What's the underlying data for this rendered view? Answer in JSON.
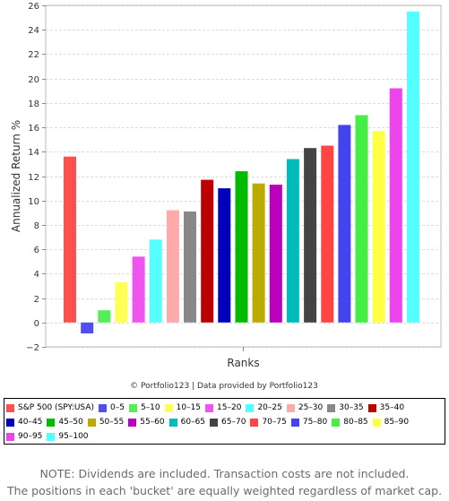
{
  "chart_data": {
    "type": "bar",
    "title": "",
    "xlabel": "Ranks",
    "ylabel": "Annualized Return %",
    "ylim": [
      -2,
      26
    ],
    "yticks": [
      -2,
      0,
      2,
      4,
      6,
      8,
      10,
      12,
      14,
      16,
      18,
      20,
      22,
      24,
      26
    ],
    "grid": true,
    "legend_position": "bottom",
    "series": [
      {
        "name": "S&P 500 (SPY:USA)",
        "value": 13.6,
        "color": "#ff5050"
      },
      {
        "name": "0-5",
        "value": -0.9,
        "color": "#4f4fef"
      },
      {
        "name": "5-10",
        "value": 1.0,
        "color": "#55ee55"
      },
      {
        "name": "10-15",
        "value": 3.3,
        "color": "#ffff55"
      },
      {
        "name": "15-20",
        "value": 5.4,
        "color": "#ee55ee"
      },
      {
        "name": "20-25",
        "value": 6.8,
        "color": "#55ffff"
      },
      {
        "name": "25-30",
        "value": 9.2,
        "color": "#ffaaaa"
      },
      {
        "name": "30-35",
        "value": 9.1,
        "color": "#888888"
      },
      {
        "name": "35-40",
        "value": 11.7,
        "color": "#bb0000"
      },
      {
        "name": "40-45",
        "value": 11.0,
        "color": "#0000bb"
      },
      {
        "name": "45-50",
        "value": 12.4,
        "color": "#00bb00"
      },
      {
        "name": "50-55",
        "value": 11.4,
        "color": "#bbaa00"
      },
      {
        "name": "55-60",
        "value": 11.3,
        "color": "#bb00bb"
      },
      {
        "name": "60-65",
        "value": 13.4,
        "color": "#00bbbb"
      },
      {
        "name": "65-70",
        "value": 14.3,
        "color": "#444444"
      },
      {
        "name": "70-75",
        "value": 14.5,
        "color": "#ff4444"
      },
      {
        "name": "75-80",
        "value": 16.2,
        "color": "#4444ee"
      },
      {
        "name": "80-85",
        "value": 17.0,
        "color": "#44ee44"
      },
      {
        "name": "85-90",
        "value": 15.7,
        "color": "#ffff44"
      },
      {
        "name": "90-95",
        "value": 19.2,
        "color": "#ee44ee"
      },
      {
        "name": "95-100",
        "value": 25.5,
        "color": "#55ffff"
      }
    ]
  },
  "legend": {
    "items": [
      {
        "label": "S&P 500 (SPY:USA)",
        "color": "#ff5050"
      },
      {
        "label": "0–5",
        "color": "#4f4fef"
      },
      {
        "label": "5–10",
        "color": "#55ee55"
      },
      {
        "label": "10–15",
        "color": "#ffff55"
      },
      {
        "label": "15–20",
        "color": "#ee55ee"
      },
      {
        "label": "20–25",
        "color": "#55ffff"
      },
      {
        "label": "25–30",
        "color": "#ffaaaa"
      },
      {
        "label": "30–35",
        "color": "#888888"
      },
      {
        "label": "35–40",
        "color": "#bb0000"
      },
      {
        "label": "40–45",
        "color": "#0000bb"
      },
      {
        "label": "45–50",
        "color": "#00bb00"
      },
      {
        "label": "50–55",
        "color": "#bbaa00"
      },
      {
        "label": "55–60",
        "color": "#bb00bb"
      },
      {
        "label": "60–65",
        "color": "#00bbbb"
      },
      {
        "label": "65–70",
        "color": "#444444"
      },
      {
        "label": "70–75",
        "color": "#ff4444"
      },
      {
        "label": "75–80",
        "color": "#4444ee"
      },
      {
        "label": "80–85",
        "color": "#44ee44"
      },
      {
        "label": "85–90",
        "color": "#ffff44"
      },
      {
        "label": "90–95",
        "color": "#ee44ee"
      },
      {
        "label": "95–100",
        "color": "#55ffff"
      }
    ]
  },
  "credits": "© Portfolio123 | Data provided by Portfolio123",
  "notes": {
    "line1": "NOTE: Dividends are included. Transaction costs are not included.",
    "line2": "The positions in each 'bucket' are equally weighted regardless of market cap."
  }
}
